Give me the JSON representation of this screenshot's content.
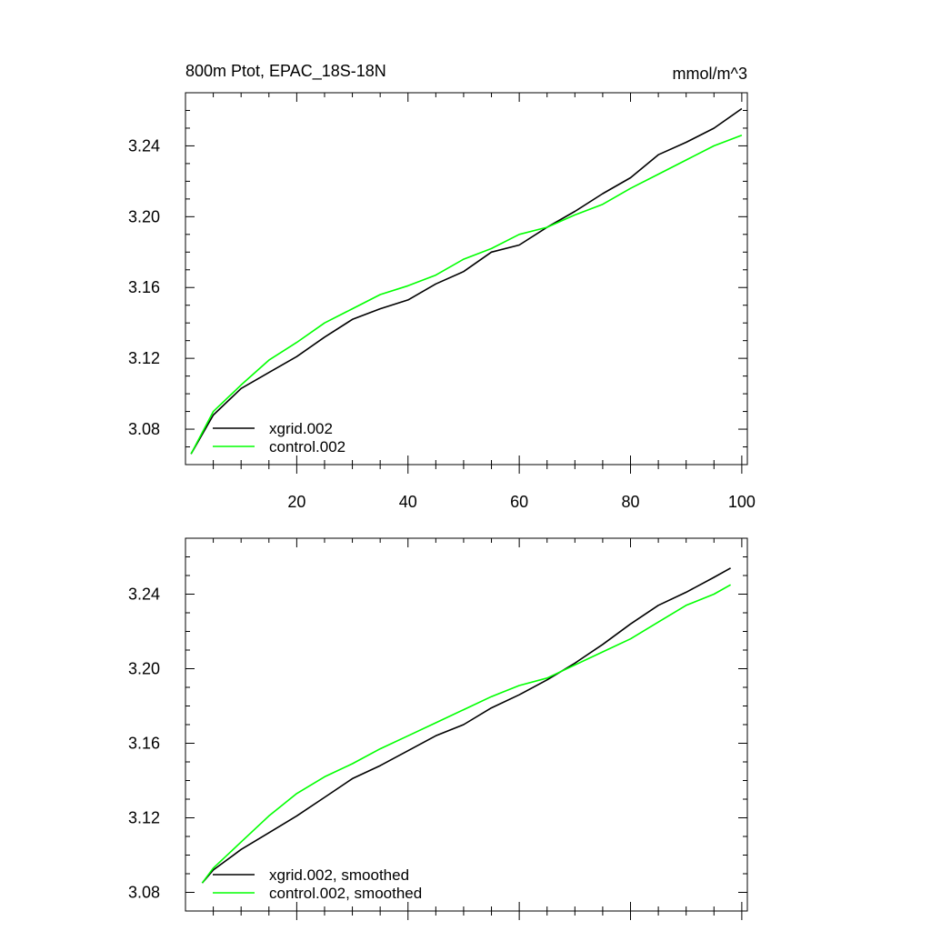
{
  "chart_data": [
    {
      "type": "line",
      "title": "800m Ptot, EPAC_18S-18N",
      "units_label": "mmol/m^3",
      "xlim": [
        0,
        101
      ],
      "ylim": [
        3.06,
        3.27
      ],
      "x_ticks": [
        20,
        40,
        60,
        80,
        100
      ],
      "y_ticks": [
        3.08,
        3.12,
        3.16,
        3.2,
        3.24
      ],
      "x_tick_labels": [
        "20",
        "40",
        "60",
        "80",
        "100"
      ],
      "y_tick_labels": [
        "3.08",
        "3.12",
        "3.16",
        "3.20",
        "3.24"
      ],
      "grid": false,
      "legend_position": "bottom-left",
      "x": [
        1,
        5,
        10,
        15,
        20,
        25,
        30,
        35,
        40,
        45,
        50,
        55,
        60,
        65,
        70,
        75,
        80,
        85,
        90,
        95,
        100
      ],
      "series": [
        {
          "name": "xgrid.002",
          "color": "#000000",
          "values": [
            3.066,
            3.088,
            3.103,
            3.112,
            3.121,
            3.132,
            3.142,
            3.148,
            3.153,
            3.162,
            3.169,
            3.18,
            3.184,
            3.194,
            3.203,
            3.213,
            3.222,
            3.235,
            3.242,
            3.25,
            3.261
          ]
        },
        {
          "name": "control.002",
          "color": "#00ff00",
          "values": [
            3.066,
            3.09,
            3.105,
            3.119,
            3.129,
            3.14,
            3.148,
            3.156,
            3.161,
            3.167,
            3.176,
            3.182,
            3.19,
            3.194,
            3.201,
            3.207,
            3.216,
            3.224,
            3.232,
            3.24,
            3.246
          ]
        }
      ]
    },
    {
      "type": "line",
      "title": "",
      "xlim": [
        0,
        101
      ],
      "ylim": [
        3.07,
        3.27
      ],
      "x_ticks": [
        20,
        40,
        60,
        80,
        100
      ],
      "y_ticks": [
        3.08,
        3.12,
        3.16,
        3.2,
        3.24
      ],
      "y_tick_labels": [
        "3.08",
        "3.12",
        "3.16",
        "3.20",
        "3.24"
      ],
      "grid": false,
      "legend_position": "bottom-left",
      "x": [
        3,
        5,
        10,
        15,
        20,
        25,
        30,
        35,
        40,
        45,
        50,
        55,
        60,
        65,
        70,
        75,
        80,
        85,
        90,
        95,
        98
      ],
      "series": [
        {
          "name": "xgrid.002, smoothed",
          "color": "#000000",
          "values": [
            3.085,
            3.092,
            3.103,
            3.112,
            3.121,
            3.131,
            3.141,
            3.148,
            3.156,
            3.164,
            3.17,
            3.179,
            3.186,
            3.194,
            3.203,
            3.213,
            3.224,
            3.234,
            3.241,
            3.249,
            3.254
          ]
        },
        {
          "name": "control.002, smoothed",
          "color": "#00ff00",
          "values": [
            3.085,
            3.093,
            3.107,
            3.121,
            3.133,
            3.142,
            3.149,
            3.157,
            3.164,
            3.171,
            3.178,
            3.185,
            3.191,
            3.195,
            3.202,
            3.209,
            3.216,
            3.225,
            3.234,
            3.24,
            3.245
          ]
        }
      ]
    }
  ]
}
